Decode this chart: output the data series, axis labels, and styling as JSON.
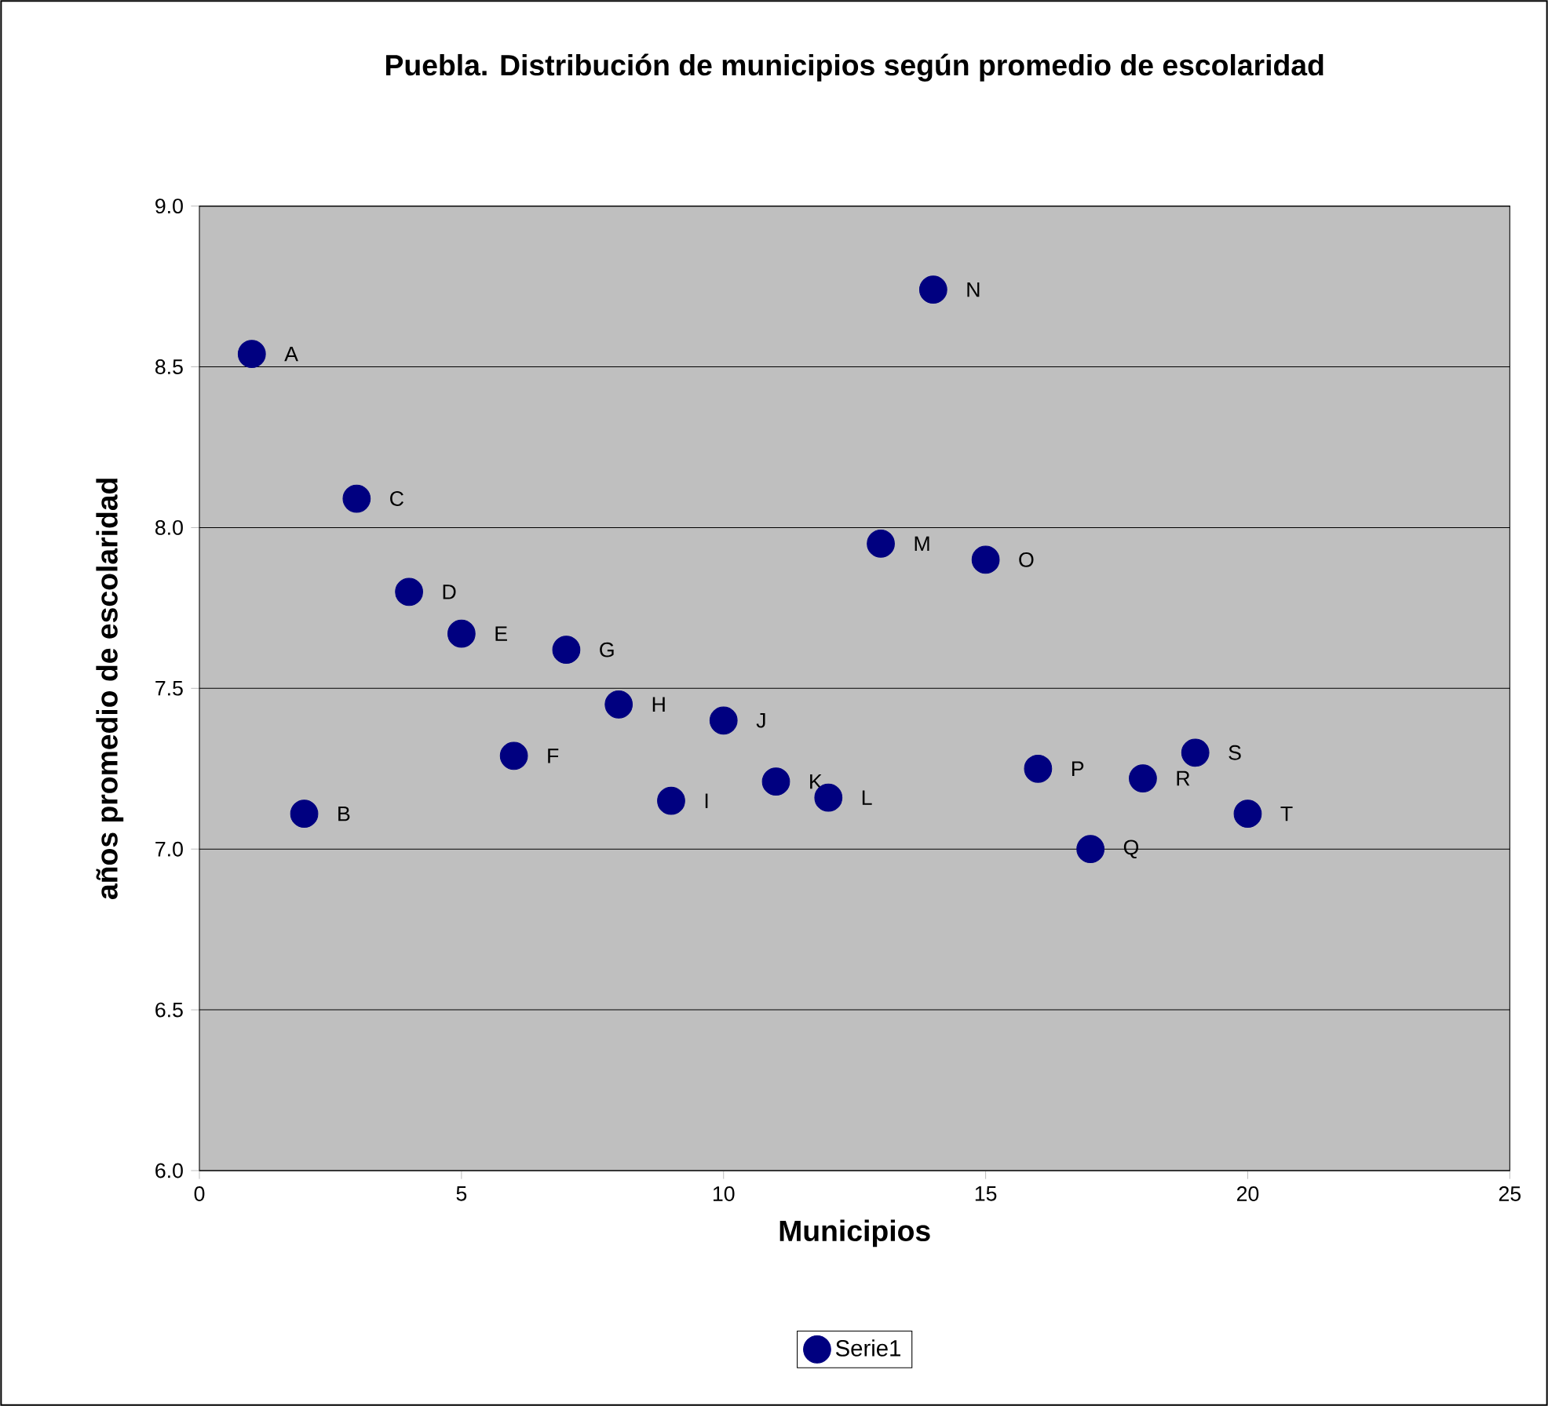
{
  "chart_data": {
    "type": "scatter",
    "title": "Puebla. Distribución de municipios según promedio de escolaridad",
    "xlabel": "Municipios",
    "ylabel": "años promedio de escolaridad",
    "x": [
      1,
      2,
      3,
      4,
      5,
      6,
      7,
      8,
      9,
      10,
      11,
      12,
      13,
      14,
      15,
      16,
      17,
      18,
      19,
      20
    ],
    "series": [
      {
        "name": "Serie1",
        "color": "#000080",
        "values": [
          8.54,
          7.11,
          8.09,
          7.8,
          7.67,
          7.29,
          7.62,
          7.45,
          7.15,
          7.4,
          7.21,
          7.16,
          7.95,
          8.74,
          7.9,
          7.25,
          7.0,
          7.22,
          7.3,
          7.11
        ]
      }
    ],
    "xlim": [
      0,
      25
    ],
    "xticks": [
      0,
      5,
      10,
      15,
      20,
      25
    ],
    "ylim": [
      6.0,
      9.0
    ],
    "yticks": [
      {
        "value": 6.0,
        "label": "6.0"
      },
      {
        "value": 6.5,
        "label": "6.5"
      },
      {
        "value": 7.0,
        "label": "7.0"
      },
      {
        "value": 7.5,
        "label": "7.5"
      },
      {
        "value": 8.0,
        "label": "8.0"
      },
      {
        "value": 8.5,
        "label": "8.5"
      },
      {
        "value": 9.0,
        "label": "9.0"
      }
    ],
    "grid": "y",
    "legend": "bottom",
    "marker": "circle",
    "annotations": [
      {
        "text": "A",
        "x": 1,
        "y": 8.54
      },
      {
        "text": "B",
        "x": 2,
        "y": 7.11
      },
      {
        "text": "C",
        "x": 3,
        "y": 8.09
      },
      {
        "text": "D",
        "x": 4,
        "y": 7.8
      },
      {
        "text": "E",
        "x": 5,
        "y": 7.67
      },
      {
        "text": "F",
        "x": 6,
        "y": 7.29
      },
      {
        "text": "G",
        "x": 7,
        "y": 7.62
      },
      {
        "text": "H",
        "x": 8,
        "y": 7.45
      },
      {
        "text": "I",
        "x": 9,
        "y": 7.15
      },
      {
        "text": "J",
        "x": 10,
        "y": 7.4
      },
      {
        "text": "K",
        "x": 11,
        "y": 7.21
      },
      {
        "text": "L",
        "x": 12,
        "y": 7.16
      },
      {
        "text": "M",
        "x": 13,
        "y": 7.95
      },
      {
        "text": "N",
        "x": 14,
        "y": 8.74
      },
      {
        "text": "O",
        "x": 15,
        "y": 7.9
      },
      {
        "text": "P",
        "x": 16,
        "y": 7.25
      },
      {
        "text": "Q",
        "x": 17,
        "y": 7.0
      },
      {
        "text": "R",
        "x": 18,
        "y": 7.22
      },
      {
        "text": "S",
        "x": 19,
        "y": 7.3
      },
      {
        "text": "T",
        "x": 20,
        "y": 7.11
      }
    ]
  }
}
